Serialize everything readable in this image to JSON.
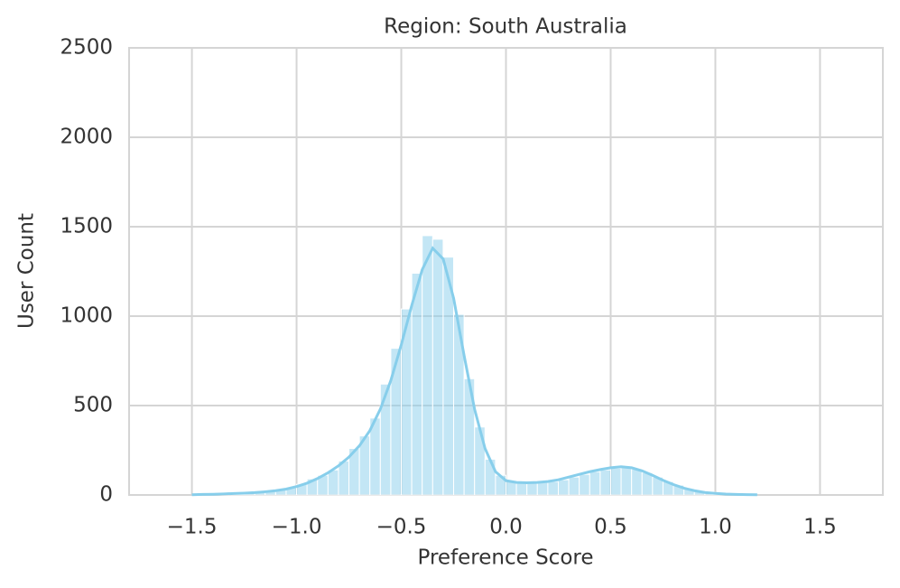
{
  "chart_data": {
    "type": "histogram",
    "title": "Region: South Australia",
    "x_label": "Preference Score",
    "y_label": "User Count",
    "bins": [
      -1.45,
      -1.4,
      -1.35,
      -1.3,
      -1.25,
      -1.2,
      -1.15,
      -1.1,
      -1.05,
      -1.0,
      -0.95,
      -0.9,
      -0.85,
      -0.8,
      -0.75,
      -0.7,
      -0.65,
      -0.6,
      -0.55,
      -0.5,
      -0.45,
      -0.4,
      -0.35,
      -0.3,
      -0.25,
      -0.2,
      -0.15,
      -0.1,
      -0.05,
      0.0,
      0.05,
      0.1,
      0.15,
      0.2,
      0.25,
      0.3,
      0.35,
      0.4,
      0.45,
      0.5,
      0.55,
      0.6,
      0.65,
      0.7,
      0.75,
      0.8,
      0.85,
      0.9,
      0.95,
      1.0,
      1.05,
      1.1,
      1.15
    ],
    "counts": [
      3,
      5,
      6,
      8,
      10,
      15,
      20,
      30,
      40,
      60,
      90,
      110,
      140,
      190,
      260,
      330,
      430,
      620,
      820,
      1040,
      1240,
      1450,
      1430,
      1330,
      1010,
      650,
      380,
      200,
      110,
      75,
      70,
      70,
      70,
      75,
      85,
      100,
      115,
      130,
      140,
      150,
      160,
      145,
      125,
      100,
      75,
      55,
      35,
      25,
      15,
      10,
      6,
      4
    ],
    "color": "#87ceeb",
    "kde": {
      "color": "#87ceeb",
      "x": [
        -1.5,
        -1.45,
        -1.4,
        -1.35,
        -1.3,
        -1.25,
        -1.2,
        -1.15,
        -1.1,
        -1.05,
        -1.0,
        -0.95,
        -0.9,
        -0.85,
        -0.8,
        -0.75,
        -0.7,
        -0.65,
        -0.6,
        -0.55,
        -0.5,
        -0.45,
        -0.4,
        -0.35,
        -0.3,
        -0.25,
        -0.2,
        -0.15,
        -0.1,
        -0.05,
        0.0,
        0.05,
        0.1,
        0.15,
        0.2,
        0.25,
        0.3,
        0.35,
        0.4,
        0.45,
        0.5,
        0.55,
        0.6,
        0.65,
        0.7,
        0.75,
        0.8,
        0.85,
        0.9,
        0.95,
        1.0,
        1.05,
        1.1,
        1.15,
        1.2
      ],
      "values": [
        1,
        3,
        4,
        6,
        8,
        10,
        13,
        18,
        24,
        33,
        47,
        66,
        92,
        124,
        163,
        212,
        275,
        360,
        480,
        640,
        840,
        1060,
        1260,
        1380,
        1320,
        1100,
        780,
        480,
        260,
        130,
        80,
        70,
        68,
        70,
        75,
        85,
        100,
        115,
        130,
        142,
        152,
        158,
        152,
        135,
        110,
        82,
        58,
        38,
        24,
        14,
        9,
        5,
        3,
        2,
        1
      ]
    },
    "xlim": [
      -1.8,
      1.8
    ],
    "ylim": [
      0,
      2500
    ],
    "xticks": [
      {
        "value": -1.5,
        "label": "−1.5"
      },
      {
        "value": -1.0,
        "label": "−1.0"
      },
      {
        "value": -0.5,
        "label": "−0.5"
      },
      {
        "value": 0.0,
        "label": "0.0"
      },
      {
        "value": 0.5,
        "label": "0.5"
      },
      {
        "value": 1.0,
        "label": "1.0"
      },
      {
        "value": 1.5,
        "label": "1.5"
      }
    ],
    "yticks": [
      0,
      500,
      1000,
      1500,
      2000,
      2500
    ],
    "grid": true
  }
}
